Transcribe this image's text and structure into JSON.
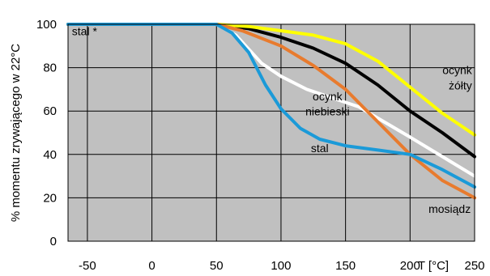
{
  "colors": {
    "plot_background": "#c0c0c0",
    "grid": "#000000",
    "stal": "#1b9ad8",
    "mosiadz": "#e87b2e",
    "ocynk_niebieski": "#ffffff",
    "ocynk_zolty": "#ffff00",
    "black_series": "#000000"
  },
  "chart_data": {
    "type": "line",
    "title": "",
    "xlabel": "T [°C]",
    "ylabel": "% momentu zrywającego w 22°C",
    "grid": true,
    "xticks": [
      {
        "value": -50,
        "label": "-50"
      },
      {
        "value": 0,
        "label": "0"
      },
      {
        "value": 50,
        "label": "50"
      },
      {
        "value": 100,
        "label": "100"
      },
      {
        "value": 150,
        "label": "150"
      },
      {
        "value": 200,
        "label": "200"
      },
      {
        "value": 250,
        "label": "250"
      }
    ],
    "yticks": [
      {
        "value": 0,
        "label": "0"
      },
      {
        "value": 20,
        "label": "20"
      },
      {
        "value": 40,
        "label": "40"
      },
      {
        "value": 60,
        "label": "60"
      },
      {
        "value": 80,
        "label": "80"
      },
      {
        "value": 100,
        "label": "100"
      }
    ],
    "xlim": [
      -65,
      250
    ],
    "ylim": [
      0,
      100
    ],
    "series": [
      {
        "key": "black",
        "color_key": "black_series",
        "points": [
          [
            -65,
            100
          ],
          [
            50,
            100
          ],
          [
            75,
            98
          ],
          [
            100,
            94
          ],
          [
            125,
            89
          ],
          [
            150,
            82
          ],
          [
            175,
            72
          ],
          [
            200,
            60
          ],
          [
            225,
            50
          ],
          [
            250,
            39
          ]
        ]
      },
      {
        "key": "zolty",
        "color_key": "ocynk_zolty",
        "points": [
          [
            -65,
            100
          ],
          [
            50,
            100
          ],
          [
            75,
            99
          ],
          [
            100,
            97
          ],
          [
            125,
            95
          ],
          [
            150,
            91
          ],
          [
            175,
            83
          ],
          [
            200,
            71
          ],
          [
            225,
            59
          ],
          [
            250,
            49
          ]
        ]
      },
      {
        "key": "niebieski",
        "color_key": "ocynk_niebieski",
        "points": [
          [
            -65,
            100
          ],
          [
            50,
            100
          ],
          [
            65,
            95
          ],
          [
            85,
            82
          ],
          [
            100,
            76
          ],
          [
            120,
            70
          ],
          [
            140,
            66
          ],
          [
            160,
            62
          ],
          [
            180,
            55
          ],
          [
            200,
            48
          ],
          [
            225,
            39
          ],
          [
            250,
            30
          ]
        ]
      },
      {
        "key": "mosiadz",
        "color_key": "mosiadz",
        "points": [
          [
            -65,
            100
          ],
          [
            50,
            100
          ],
          [
            70,
            97
          ],
          [
            100,
            90
          ],
          [
            125,
            81
          ],
          [
            150,
            70
          ],
          [
            175,
            55
          ],
          [
            200,
            40
          ],
          [
            225,
            28
          ],
          [
            250,
            20
          ]
        ]
      },
      {
        "key": "stal",
        "color_key": "stal",
        "points": [
          [
            -65,
            100
          ],
          [
            50,
            100
          ],
          [
            62,
            96
          ],
          [
            75,
            87
          ],
          [
            88,
            72
          ],
          [
            100,
            61
          ],
          [
            115,
            52
          ],
          [
            130,
            47
          ],
          [
            150,
            44
          ],
          [
            175,
            42
          ],
          [
            200,
            40
          ],
          [
            225,
            33
          ],
          [
            250,
            25
          ]
        ]
      }
    ],
    "annotations": [
      {
        "key": "stal_star",
        "text": "stal *",
        "x": -62,
        "y": 95,
        "anchor": "start"
      },
      {
        "key": "ocynk_niebieski_1",
        "text": "ocynk",
        "x": 136,
        "y": 65,
        "anchor": "middle"
      },
      {
        "key": "ocynk_niebieski_2",
        "text": "niebieski",
        "x": 136,
        "y": 58,
        "anchor": "middle"
      },
      {
        "key": "ocynk_zolty_1",
        "text": "ocynk",
        "x": 248,
        "y": 77,
        "anchor": "end"
      },
      {
        "key": "ocynk_zolty_2",
        "text": "żółty",
        "x": 248,
        "y": 70,
        "anchor": "end"
      },
      {
        "key": "stal_curve",
        "text": "stal",
        "x": 130,
        "y": 41,
        "anchor": "middle"
      },
      {
        "key": "mosiadz",
        "text": "mosiądz",
        "x": 247,
        "y": 13,
        "anchor": "end"
      }
    ]
  }
}
